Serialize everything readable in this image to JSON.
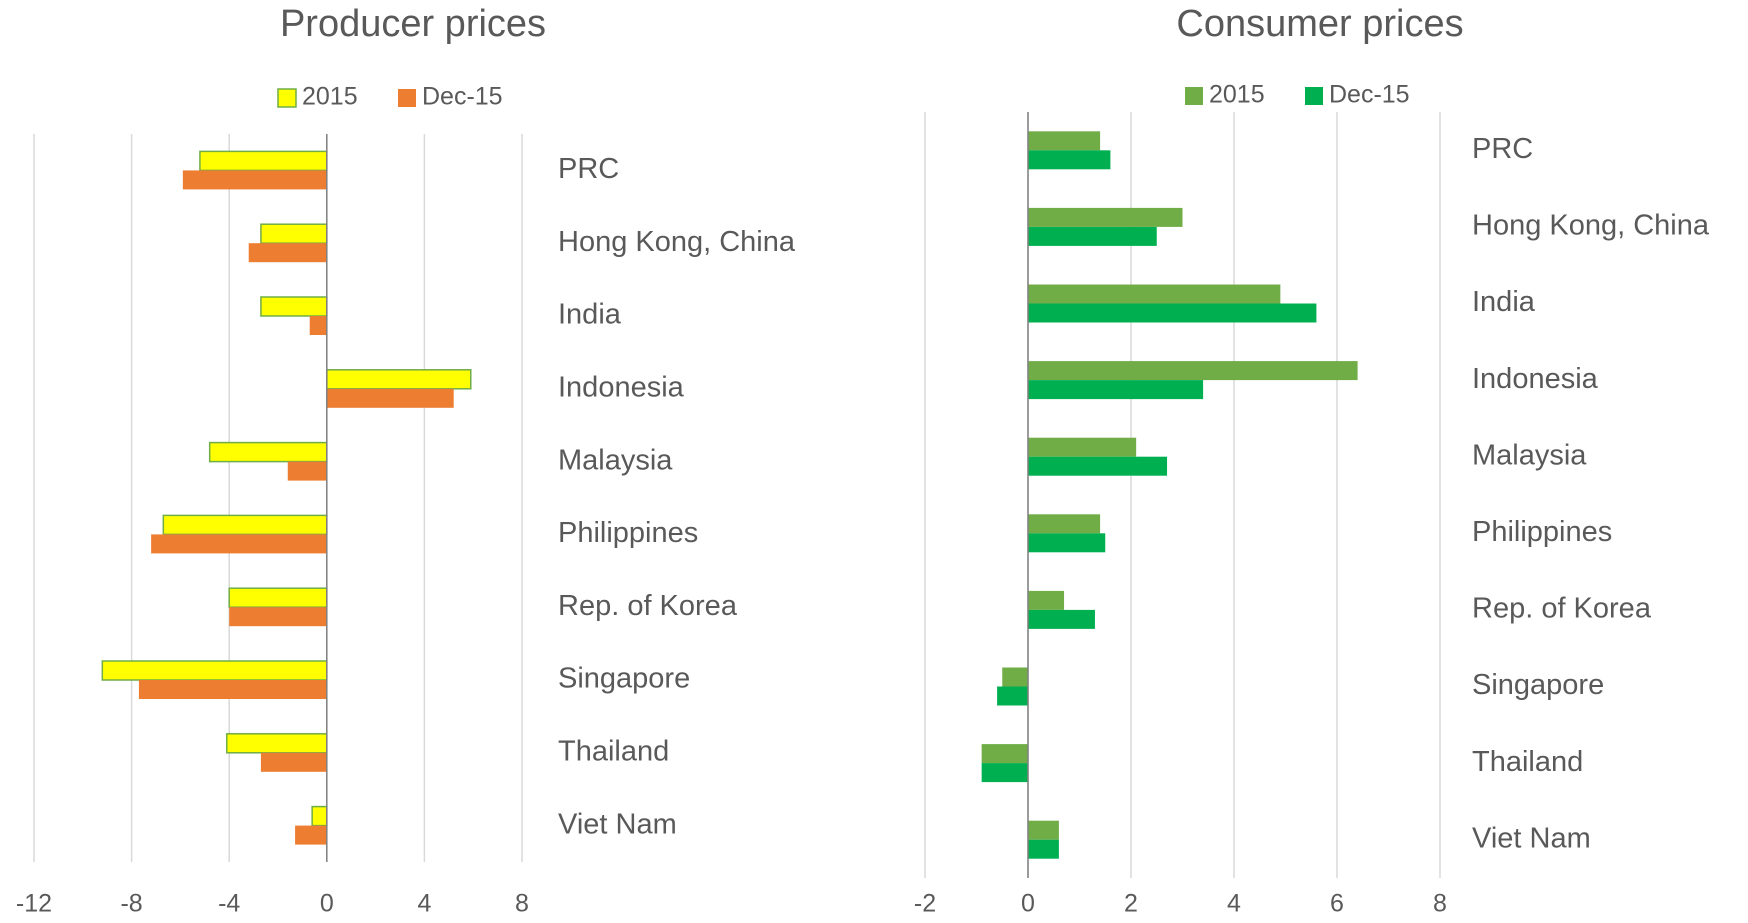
{
  "chart_data": [
    {
      "type": "bar",
      "orientation": "horizontal",
      "title": "Producer prices",
      "categories": [
        "PRC",
        "Hong Kong, China",
        "India",
        "Indonesia",
        "Malaysia",
        "Philippines",
        "Rep. of Korea",
        "Singapore",
        "Thailand",
        "Viet Nam"
      ],
      "series": [
        {
          "name": "2015",
          "color": "#ffff00",
          "edgecolor": "#70ad47",
          "values": [
            -5.2,
            -2.7,
            -2.7,
            5.9,
            -4.8,
            -6.7,
            -4.0,
            -9.2,
            -4.1,
            -0.6
          ]
        },
        {
          "name": "Dec-15",
          "color": "#ed7d31",
          "values": [
            -5.9,
            -3.2,
            -0.7,
            5.2,
            -1.6,
            -7.2,
            -4.0,
            -7.7,
            -2.7,
            -1.3
          ]
        }
      ],
      "xlim": [
        -12,
        8
      ],
      "xticks": [
        -12,
        -8,
        -4,
        0,
        4,
        8
      ],
      "grid": true,
      "legend": "top"
    },
    {
      "type": "bar",
      "orientation": "horizontal",
      "title": "Consumer prices",
      "categories": [
        "PRC",
        "Hong Kong, China",
        "India",
        "Indonesia",
        "Malaysia",
        "Philippines",
        "Rep. of Korea",
        "Singapore",
        "Thailand",
        "Viet Nam"
      ],
      "series": [
        {
          "name": "2015",
          "color": "#70ad47",
          "values": [
            1.4,
            3.0,
            4.9,
            6.4,
            2.1,
            1.4,
            0.7,
            -0.5,
            -0.9,
            0.6
          ]
        },
        {
          "name": "Dec-15",
          "color": "#00b050",
          "values": [
            1.6,
            2.5,
            5.6,
            3.4,
            2.7,
            1.5,
            1.3,
            -0.6,
            -0.9,
            0.6
          ]
        }
      ],
      "xlim": [
        -2,
        8
      ],
      "xticks": [
        -2,
        0,
        2,
        4,
        6,
        8
      ],
      "grid": true,
      "legend": "top"
    }
  ]
}
